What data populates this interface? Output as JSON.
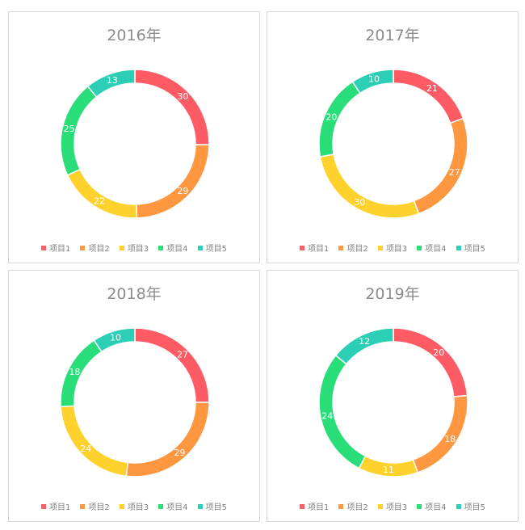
{
  "chart_data": [
    {
      "type": "pie",
      "title": "2016年",
      "categories": [
        "项目1",
        "项目2",
        "项目3",
        "项目4",
        "项目5"
      ],
      "values": [
        30,
        29,
        22,
        25,
        13
      ],
      "legend": "bottom"
    },
    {
      "type": "pie",
      "title": "2017年",
      "categories": [
        "项目1",
        "项目2",
        "项目3",
        "项目4",
        "项目5"
      ],
      "values": [
        21,
        27,
        30,
        20,
        10
      ],
      "legend": "bottom"
    },
    {
      "type": "pie",
      "title": "2018年",
      "categories": [
        "项目1",
        "项目2",
        "项目3",
        "项目4",
        "项目5"
      ],
      "values": [
        27,
        29,
        24,
        18,
        10
      ],
      "legend": "bottom"
    },
    {
      "type": "pie",
      "title": "2019年",
      "categories": [
        "项目1",
        "项目2",
        "项目3",
        "项目4",
        "项目5"
      ],
      "values": [
        20,
        18,
        11,
        24,
        12
      ],
      "legend": "bottom"
    }
  ],
  "colors": [
    "#ff5b65",
    "#ff9640",
    "#ffd12c",
    "#29dd79",
    "#2ccfb6"
  ]
}
